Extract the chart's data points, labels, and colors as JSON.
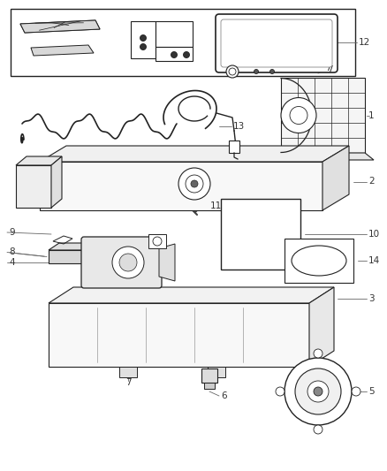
{
  "bg": "#ffffff",
  "lc": "#222222",
  "lc2": "#555555",
  "fig_w": 4.38,
  "fig_h": 5.33,
  "dpi": 100
}
